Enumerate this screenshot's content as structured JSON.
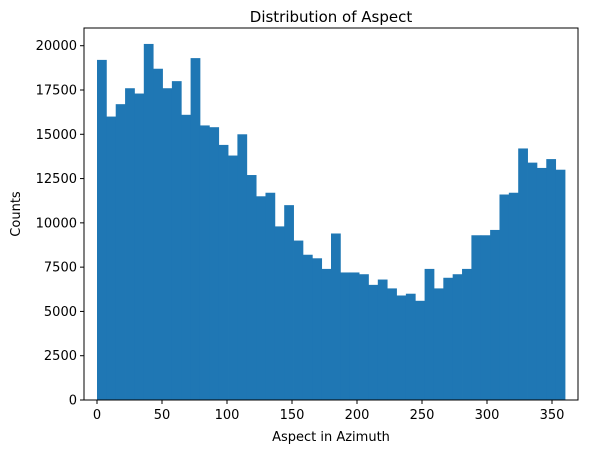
{
  "chart_data": {
    "type": "bar",
    "title": "Distribution of Aspect",
    "xlabel": "Aspect in Azimuth",
    "ylabel": "Counts",
    "xlim": [
      -10,
      370
    ],
    "ylim": [
      0,
      21000
    ],
    "xticks": [
      0,
      50,
      100,
      150,
      200,
      250,
      300,
      350
    ],
    "yticks": [
      0,
      2500,
      5000,
      7500,
      10000,
      12500,
      15000,
      17500,
      20000
    ],
    "grid": false,
    "bin_start": 0,
    "bin_width": 7.2,
    "color": "#1f77b4",
    "values": [
      19200,
      16000,
      16700,
      17600,
      17300,
      20100,
      18700,
      17600,
      18000,
      16100,
      19300,
      15500,
      15400,
      14400,
      13800,
      15000,
      12700,
      11500,
      11700,
      9800,
      11000,
      9000,
      8200,
      8000,
      7400,
      9400,
      7200,
      7200,
      7100,
      6500,
      6800,
      6300,
      5900,
      6000,
      5600,
      7400,
      6300,
      6900,
      7100,
      7400,
      9300,
      9300,
      9600,
      11600,
      11700,
      14200,
      13400,
      13100,
      13600,
      13000
    ]
  }
}
